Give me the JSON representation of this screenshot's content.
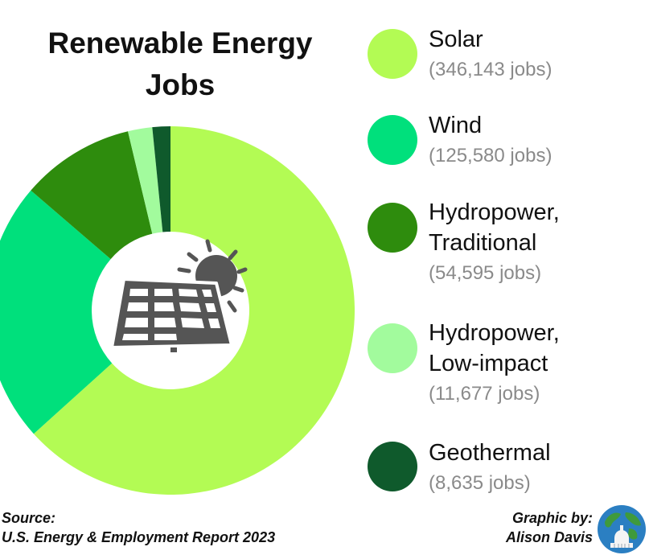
{
  "chart_data": {
    "type": "pie",
    "title_lines": [
      "Renewable Energy",
      "Jobs"
    ],
    "categories": [
      {
        "name_lines": [
          "Solar"
        ],
        "value": 346143,
        "jobs_label": "(346,143 jobs)",
        "color": "#b3fb54"
      },
      {
        "name_lines": [
          "Wind"
        ],
        "value": 125580,
        "jobs_label": "(125,580 jobs)",
        "color": "#00e07c"
      },
      {
        "name_lines": [
          "Hydropower,",
          "Traditional"
        ],
        "value": 54595,
        "jobs_label": "(54,595 jobs)",
        "color": "#2e8c0d"
      },
      {
        "name_lines": [
          "Hydropower,",
          "Low-impact"
        ],
        "value": 11677,
        "jobs_label": "(11,677 jobs)",
        "color": "#a2fb9d"
      },
      {
        "name_lines": [
          "Geothermal"
        ],
        "value": 8635,
        "jobs_label": "(8,635 jobs)",
        "color": "#0f5a2c"
      }
    ],
    "legend_position": "right",
    "center_icon": "solar-panel-icon"
  },
  "footer": {
    "source_label": "Source:",
    "source_text": "U.S. Energy & Employment Report 2023",
    "credit_label": "Graphic by:",
    "credit_name": "Alison Davis",
    "credit_icon": "globe-capitol-icon"
  }
}
